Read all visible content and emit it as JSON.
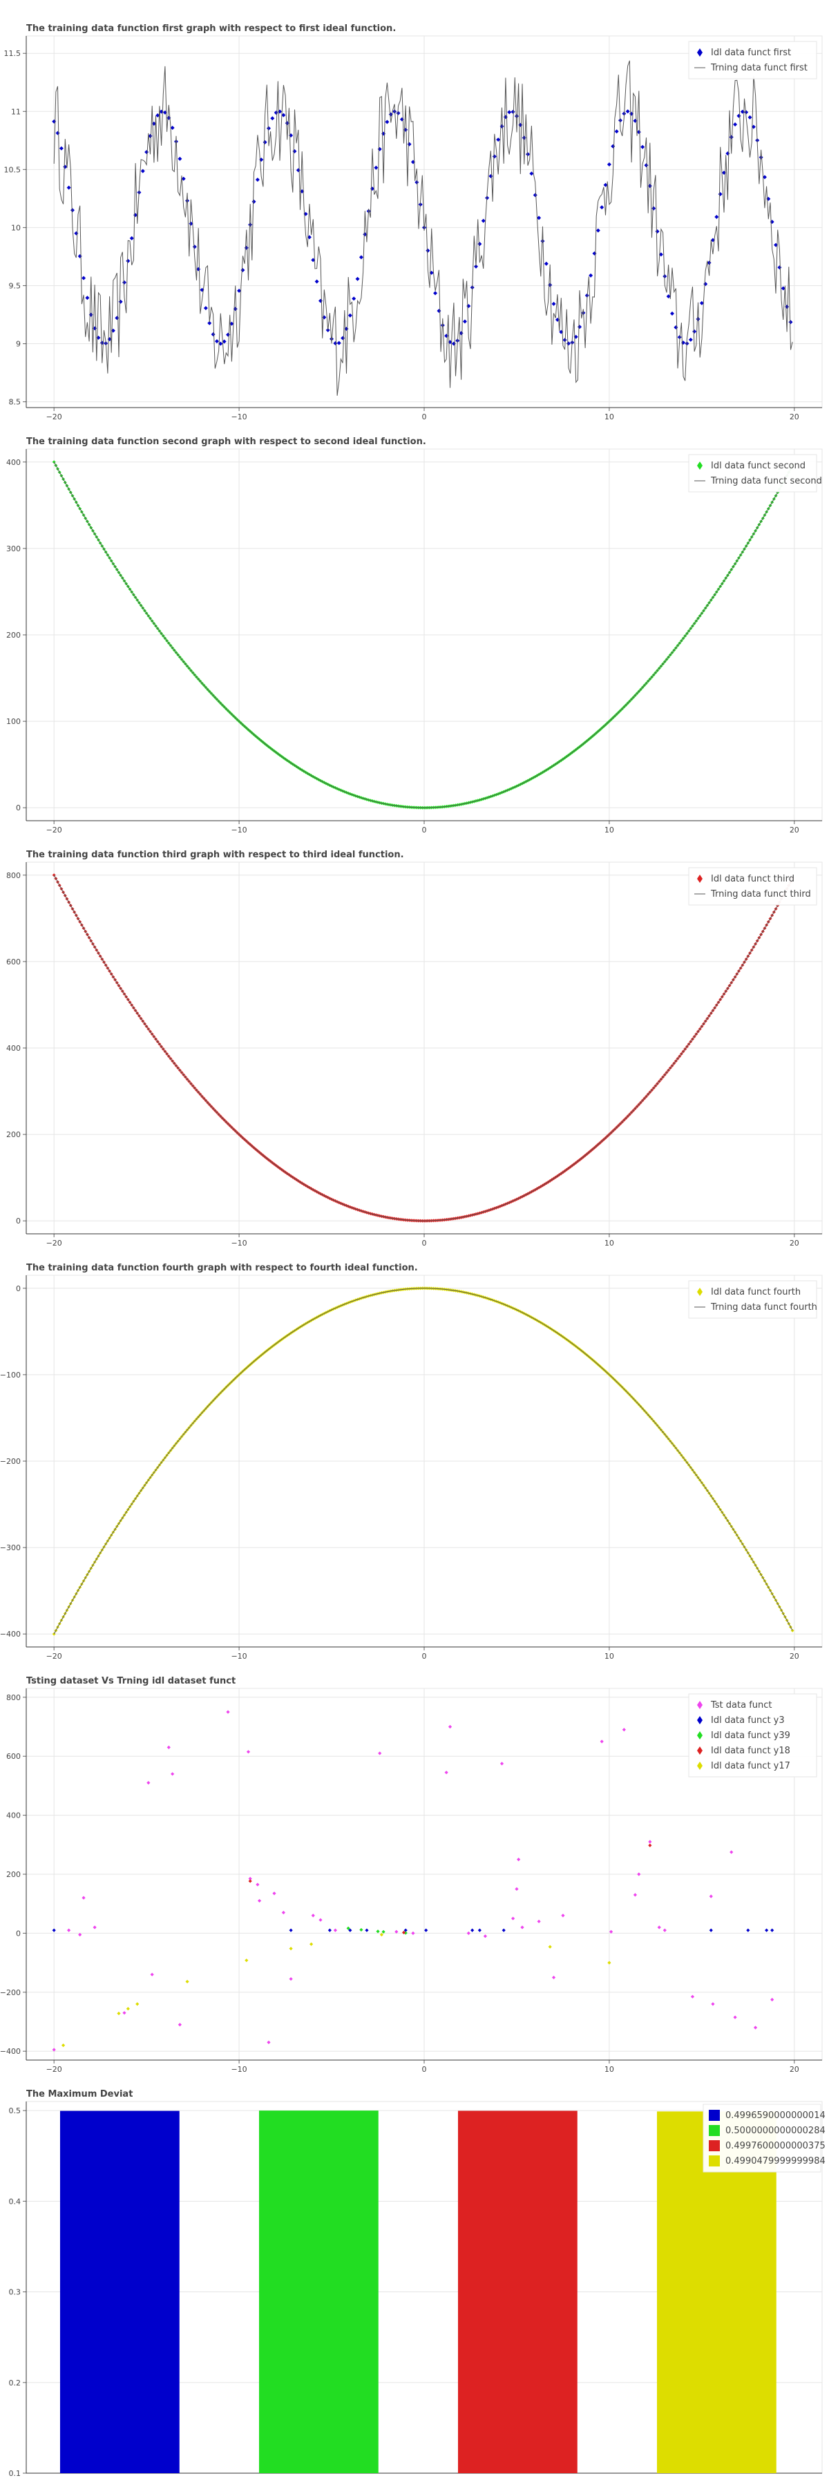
{
  "colors": {
    "first": "#0000cc",
    "second": "#22dd22",
    "third": "#dd2222",
    "fourth": "#dddd00",
    "training": "#555555",
    "test": "#ee44ee"
  },
  "chart_data": [
    {
      "type": "line",
      "title": "The training data function first graph with respect to first ideal function.",
      "xlabel": "",
      "ylabel": "",
      "xlim": [
        -21.5,
        21.5
      ],
      "ylim": [
        8.45,
        11.65
      ],
      "xticks": [
        "-20",
        "-10",
        "0",
        "10",
        "20"
      ],
      "yticks": [
        "8.5",
        "9",
        "9.5",
        "10",
        "10.5",
        "11",
        "11.5"
      ],
      "grid": true,
      "legend_position": "top-right",
      "series": [
        {
          "name": "Idl data funct first",
          "kind": "scatter-diamond",
          "color": "first",
          "expr": "10 - sin(x)",
          "x_range": [
            -20,
            19.9
          ],
          "step": 0.2
        },
        {
          "name": "Trning data funct first",
          "kind": "line",
          "color": "training",
          "expr": "10 - sin(x) + noise",
          "noise_amplitude": 0.45,
          "x_range": [
            -20,
            19.9
          ],
          "step": 0.1
        }
      ]
    },
    {
      "type": "line",
      "title": "The training data function second graph with respect to second ideal function.",
      "xlabel": "",
      "ylabel": "",
      "xlim": [
        -21.5,
        21.5
      ],
      "ylim": [
        -15,
        415
      ],
      "xticks": [
        "-20",
        "-10",
        "0",
        "10",
        "20"
      ],
      "yticks": [
        "0",
        "100",
        "200",
        "300",
        "400"
      ],
      "grid": true,
      "legend_position": "top-right",
      "series": [
        {
          "name": "Idl data funct second",
          "kind": "scatter-diamond",
          "color": "second",
          "expr": "x^2",
          "x_range": [
            -20,
            19.9
          ],
          "step": 0.1
        },
        {
          "name": "Trning data funct second",
          "kind": "line",
          "color": "training",
          "expr": "x^2",
          "x_range": [
            -20,
            19.9
          ],
          "step": 0.1
        }
      ]
    },
    {
      "type": "line",
      "title": "The training data function third graph with respect to third ideal function.",
      "xlabel": "",
      "ylabel": "",
      "xlim": [
        -21.5,
        21.5
      ],
      "ylim": [
        -30,
        830
      ],
      "xticks": [
        "-20",
        "-10",
        "0",
        "10",
        "20"
      ],
      "yticks": [
        "0",
        "200",
        "400",
        "600",
        "800"
      ],
      "grid": true,
      "legend_position": "top-right",
      "series": [
        {
          "name": "Idl data funct third",
          "kind": "scatter-diamond",
          "color": "third",
          "expr": "2*x^2",
          "x_range": [
            -20,
            19.9
          ],
          "step": 0.1
        },
        {
          "name": "Trning data funct third",
          "kind": "line",
          "color": "training",
          "expr": "2*x^2",
          "x_range": [
            -20,
            19.9
          ],
          "step": 0.1
        }
      ]
    },
    {
      "type": "line",
      "title": "The training data function fourth graph with respect to fourth ideal function.",
      "xlabel": "",
      "ylabel": "",
      "xlim": [
        -21.5,
        21.5
      ],
      "ylim": [
        -415,
        15
      ],
      "xticks": [
        "-20",
        "-10",
        "0",
        "10",
        "20"
      ],
      "yticks": [
        "-400",
        "-300",
        "-200",
        "-100",
        "0"
      ],
      "grid": true,
      "legend_position": "top-right",
      "series": [
        {
          "name": "Idl data funct fourth",
          "kind": "scatter-diamond",
          "color": "fourth",
          "expr": "-x^2",
          "x_range": [
            -20,
            19.9
          ],
          "step": 0.1
        },
        {
          "name": "Trning data funct fourth",
          "kind": "line",
          "color": "training",
          "expr": "-x^2",
          "x_range": [
            -20,
            19.9
          ],
          "step": 0.1
        }
      ]
    },
    {
      "type": "scatter",
      "title": "Tsting dataset Vs Trning idl dataset funct",
      "xlabel": "",
      "ylabel": "",
      "xlim": [
        -21.5,
        21.5
      ],
      "ylim": [
        -430,
        830
      ],
      "xticks": [
        "-20",
        "-10",
        "0",
        "10",
        "20"
      ],
      "yticks": [
        "-400",
        "-200",
        "0",
        "200",
        "400",
        "600",
        "800"
      ],
      "grid": true,
      "legend_position": "top-right",
      "series": [
        {
          "name": "Tst data funct",
          "color": "test",
          "points": [
            [
              -20,
              -395
            ],
            [
              -19.2,
              10
            ],
            [
              -18.6,
              -5
            ],
            [
              -18.4,
              120
            ],
            [
              -17.8,
              20
            ],
            [
              -16.2,
              -270
            ],
            [
              -14.9,
              510
            ],
            [
              -14.7,
              -140
            ],
            [
              -13.8,
              630
            ],
            [
              -13.6,
              540
            ],
            [
              -13.2,
              -310
            ],
            [
              -10.6,
              750
            ],
            [
              -9.5,
              615
            ],
            [
              -9.4,
              185
            ],
            [
              -9.0,
              165
            ],
            [
              -8.9,
              110
            ],
            [
              -8.4,
              -370
            ],
            [
              -8.1,
              135
            ],
            [
              -7.6,
              70
            ],
            [
              -7.2,
              -155
            ],
            [
              -6.0,
              60
            ],
            [
              -5.6,
              45
            ],
            [
              -4.8,
              10
            ],
            [
              -2.4,
              610
            ],
            [
              -1.5,
              5
            ],
            [
              -0.6,
              0
            ],
            [
              1.2,
              545
            ],
            [
              1.4,
              700
            ],
            [
              2.4,
              0
            ],
            [
              3.3,
              -10
            ],
            [
              4.2,
              575
            ],
            [
              4.8,
              50
            ],
            [
              5.0,
              150
            ],
            [
              5.1,
              250
            ],
            [
              5.3,
              20
            ],
            [
              6.2,
              40
            ],
            [
              7.0,
              -150
            ],
            [
              7.5,
              60
            ],
            [
              9.6,
              650
            ],
            [
              10.1,
              5
            ],
            [
              10.8,
              690
            ],
            [
              11.4,
              130
            ],
            [
              11.6,
              200
            ],
            [
              12.2,
              310
            ],
            [
              12.7,
              20
            ],
            [
              13.0,
              10
            ],
            [
              14.5,
              -215
            ],
            [
              15.5,
              125
            ],
            [
              15.6,
              -240
            ],
            [
              16.6,
              275
            ],
            [
              16.8,
              -285
            ],
            [
              17.9,
              -320
            ],
            [
              18.8,
              -225
            ]
          ]
        },
        {
          "name": "Idl data funct y3",
          "color": "first",
          "points": [
            [
              -20,
              10
            ],
            [
              -7.2,
              10
            ],
            [
              -5.1,
              10
            ],
            [
              -4.0,
              10
            ],
            [
              -3.1,
              10
            ],
            [
              -1.0,
              10
            ],
            [
              0.1,
              10
            ],
            [
              2.6,
              10
            ],
            [
              3.0,
              10
            ],
            [
              4.3,
              10
            ],
            [
              15.5,
              10
            ],
            [
              17.5,
              10
            ],
            [
              18.5,
              10
            ],
            [
              18.8,
              10
            ]
          ]
        },
        {
          "name": "Idl data funct y39",
          "color": "second",
          "points": [
            [
              -4.1,
              16.8
            ],
            [
              -3.4,
              11.6
            ],
            [
              -2.5,
              6.25
            ],
            [
              -2.2,
              4.84
            ],
            [
              -1.0,
              1.0
            ]
          ]
        },
        {
          "name": "Idl data funct y18",
          "color": "third",
          "points": [
            [
              -9.4,
              176.7
            ],
            [
              -1.1,
              2.4
            ],
            [
              12.2,
              297.7
            ]
          ]
        },
        {
          "name": "Idl data funct y17",
          "color": "fourth",
          "points": [
            [
              -19.5,
              -380
            ],
            [
              -16.5,
              -272
            ],
            [
              -16,
              -256
            ],
            [
              -15.5,
              -240
            ],
            [
              -12.8,
              -164
            ],
            [
              -9.6,
              -92
            ],
            [
              -7.2,
              -52
            ],
            [
              -6.1,
              -37
            ],
            [
              -2.3,
              -5
            ],
            [
              6.8,
              -46
            ],
            [
              10,
              -100
            ]
          ]
        }
      ]
    },
    {
      "type": "bar",
      "title": "The Maximum Deviat",
      "xlabel": "",
      "ylabel": "",
      "ylim": [
        0.1,
        0.51
      ],
      "yticks": [
        "0.1",
        "0.2",
        "0.3",
        "0.4",
        "0.5"
      ],
      "grid": true,
      "legend_position": "top-right",
      "categories": [
        "0.4996590000000014",
        "0.5000000000000284",
        "0.4997600000000375",
        "0.4990479999999984"
      ],
      "values": [
        0.4996590000000014,
        0.5000000000000284,
        0.4997600000000375,
        0.4990479999999984
      ],
      "bar_colors": [
        "first",
        "second",
        "third",
        "fourth"
      ]
    }
  ]
}
